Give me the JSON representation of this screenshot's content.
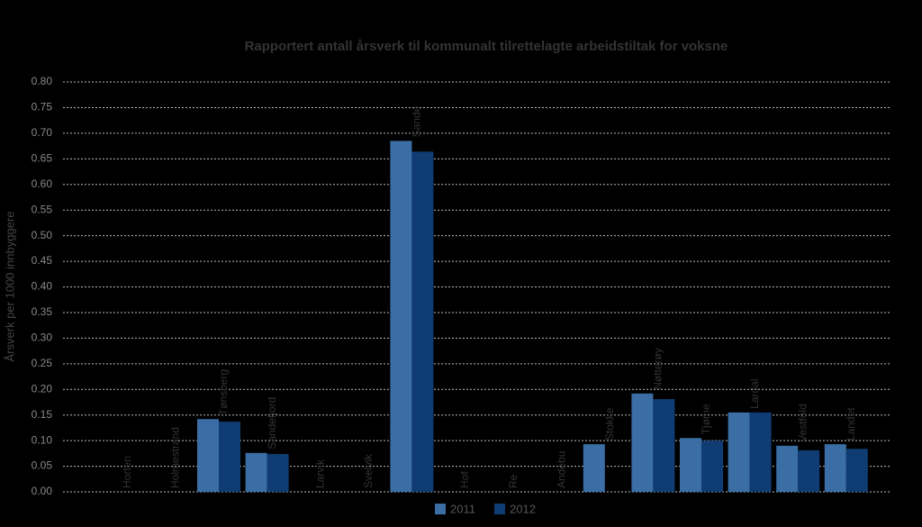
{
  "chart_data": {
    "type": "bar",
    "title": "Rapportert antall årsverk til kommunalt tilrettelagte arbeidstiltak for voksne",
    "y_label": "Årsverk per 1000 innbyggere",
    "categories": [
      "Horten",
      "Holmestrand",
      "Tønsberg",
      "Sandefjord",
      "Larvik",
      "Svelvik",
      "Sande",
      "Hof",
      "Re",
      "Andebu",
      "Stokke",
      "Nøtterøy",
      "Tjøme",
      "Lardal",
      "Vestfold",
      "Landet"
    ],
    "series": [
      {
        "name": "2011",
        "color": "#3a6ea5",
        "values": [
          0,
          0,
          0.142,
          0.076,
          0,
          0,
          0.685,
          0,
          0,
          0,
          0.093,
          0.192,
          0.105,
          0.155,
          0.09,
          0.093
        ]
      },
      {
        "name": "2012",
        "color": "#0f3d73",
        "values": [
          0,
          0,
          0.137,
          0.074,
          0,
          0,
          0.664,
          0,
          0,
          0,
          null,
          0.181,
          0.1,
          0.155,
          0.081,
          0.084
        ]
      }
    ],
    "ylim": [
      0,
      0.8
    ],
    "yticks": [
      {
        "value": 0,
        "label": "0.00"
      },
      {
        "value": 0.05,
        "label": "0.05"
      },
      {
        "value": 0.1,
        "label": "0.10"
      },
      {
        "value": 0.15,
        "label": "0.15"
      },
      {
        "value": 0.2,
        "label": "0.20"
      },
      {
        "value": 0.25,
        "label": "0.25"
      },
      {
        "value": 0.3,
        "label": "0.30"
      },
      {
        "value": 0.35,
        "label": "0.35"
      },
      {
        "value": 0.4,
        "label": "0.40"
      },
      {
        "value": 0.45,
        "label": "0.45"
      },
      {
        "value": 0.5,
        "label": "0.50"
      },
      {
        "value": 0.55,
        "label": "0.55"
      },
      {
        "value": 0.6,
        "label": "0.60"
      },
      {
        "value": 0.65,
        "label": "0.65"
      },
      {
        "value": 0.7,
        "label": "0.70"
      },
      {
        "value": 0.75,
        "label": "0.75"
      },
      {
        "value": 0.8,
        "label": "0.80"
      }
    ],
    "grid": true
  }
}
